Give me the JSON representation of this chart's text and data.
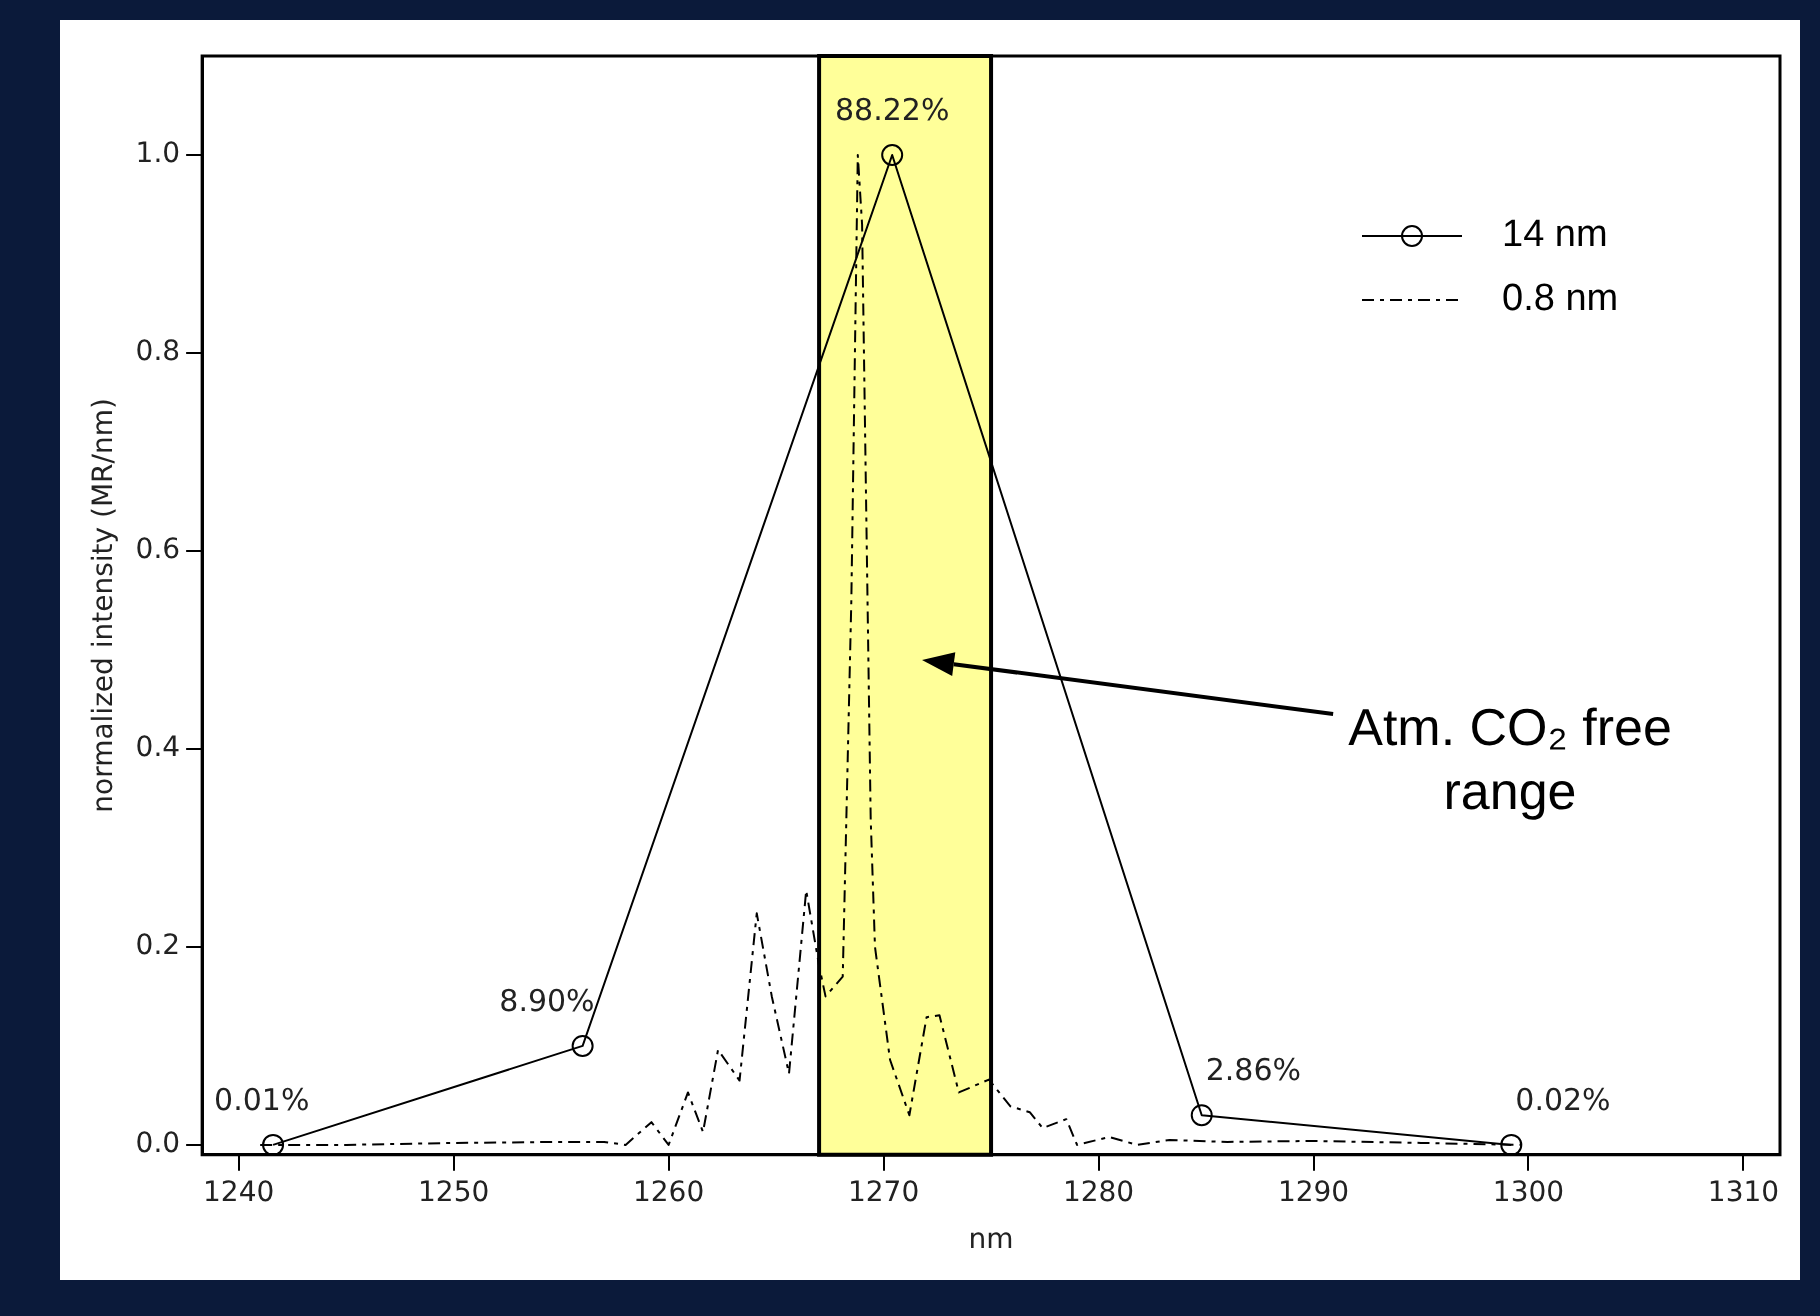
{
  "chart_data": {
    "type": "line",
    "xlabel": "nm",
    "ylabel": "normalized intensity (MR/nm)",
    "xlim": [
      1238.3,
      1311.7
    ],
    "xticks": [
      1240,
      1250,
      1260,
      1270,
      1280,
      1290,
      1300,
      1310
    ],
    "ylim": [
      -0.01,
      1.1
    ],
    "yticks": [
      {
        "value": 0,
        "label": "0.0"
      },
      {
        "value": 0.2,
        "label": "0.2"
      },
      {
        "value": 0.4,
        "label": "0.4"
      },
      {
        "value": 0.6,
        "label": "0.6"
      },
      {
        "value": 0.8,
        "label": "0.8"
      },
      {
        "value": 1.0,
        "label": "1.0"
      }
    ],
    "legend": "top right",
    "bands": [
      {
        "axis": "x",
        "from": 1267,
        "to": 1275,
        "color": "#ffff99"
      }
    ],
    "annotations": [
      {
        "text": "0.01%",
        "x": 1241.6,
        "y": 0.0
      },
      {
        "text": "8.90%",
        "x": 1256.0,
        "y": 0.1
      },
      {
        "text": "88.22%",
        "x": 1270.4,
        "y": 1.0
      },
      {
        "text": "2.86%",
        "x": 1284.8,
        "y": 0.03
      },
      {
        "text": "0.02%",
        "x": 1299.2,
        "y": 0.0
      },
      "Atm. CO₂ free range"
    ],
    "series": [
      {
        "name": "14 nm",
        "color": "#000000",
        "marker": "circle",
        "line_style": "solid",
        "x": [
          1241.6,
          1256.0,
          1270.4,
          1284.8,
          1299.2
        ],
        "values": [
          0.0,
          0.1,
          1.0,
          0.03,
          0.0
        ]
      },
      {
        "name": "0.8 nm",
        "color": "#000000",
        "marker": "none",
        "line_style": "dashed",
        "x": [
          1241.0,
          1245.0,
          1250.0,
          1255.0,
          1257.0,
          1258.0,
          1259.2,
          1260.0,
          1260.9,
          1261.6,
          1262.3,
          1263.3,
          1264.1,
          1264.8,
          1265.6,
          1266.4,
          1267.0,
          1267.3,
          1268.1,
          1268.5,
          1268.8,
          1269.0,
          1269.2,
          1269.4,
          1269.6,
          1270.3,
          1271.2,
          1272.0,
          1272.6,
          1273.5,
          1274.9,
          1275.9,
          1276.8,
          1277.4,
          1278.5,
          1279.0,
          1280.5,
          1281.8,
          1283.3,
          1286.0,
          1290.0,
          1295.0,
          1299.7
        ],
        "values": [
          0.0,
          0.0,
          0.002,
          0.003,
          0.003,
          0.0,
          0.023,
          0.0,
          0.053,
          0.013,
          0.096,
          0.065,
          0.234,
          0.15,
          0.072,
          0.257,
          0.181,
          0.15,
          0.17,
          0.55,
          1.0,
          0.93,
          0.63,
          0.33,
          0.2,
          0.086,
          0.03,
          0.129,
          0.131,
          0.053,
          0.066,
          0.039,
          0.033,
          0.017,
          0.026,
          0.0,
          0.008,
          0.0,
          0.005,
          0.003,
          0.004,
          0.002,
          0.0
        ]
      }
    ]
  }
}
